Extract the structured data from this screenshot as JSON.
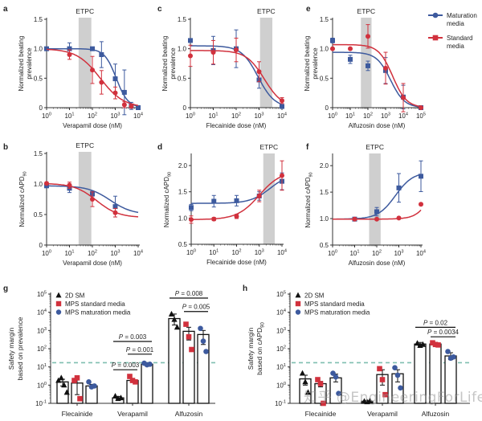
{
  "colors": {
    "maturation": "#3d5a9e",
    "standard": "#d1313d",
    "etpc_band": "#cfcfcf",
    "twod": "#111111",
    "threshold": "#7fbfb0"
  },
  "legend_top": {
    "items": [
      {
        "label_line1": "Maturation",
        "label_line2": "media",
        "series": "maturation"
      },
      {
        "label_line1": "Standard",
        "label_line2": "media",
        "series": "standard"
      }
    ]
  },
  "watermark": "知乎 @EngineeringForLife",
  "chart_data": [
    {
      "panel": "a",
      "type": "line",
      "band_label": "ETPC",
      "band": [
        25,
        90
      ],
      "xlabel": "Verapamil dose (nM)",
      "ylabel": "Normalized beating prevalence",
      "xscale": "log",
      "xlim": [
        1,
        10000
      ],
      "xticks": [
        "10^0",
        "10^1",
        "10^2",
        "10^3",
        "10^4"
      ],
      "ylim": [
        0,
        1.5
      ],
      "yticks": [
        "0",
        "0.5",
        "1.0",
        "1.5"
      ],
      "series": [
        {
          "name": "Maturation media",
          "key": "maturation",
          "marker": "square",
          "x": [
            1,
            10,
            100,
            250,
            1000,
            2500,
            5000,
            10000
          ],
          "y": [
            1.0,
            1.0,
            1.0,
            0.9,
            0.49,
            0.26,
            0.03,
            0.0
          ],
          "err": [
            0,
            0.1,
            0,
            0.22,
            0.25,
            0.38,
            0.06,
            0
          ],
          "fit": {
            "top": 1.0,
            "bottom": 0.0,
            "ic50": 1100,
            "hill": 1.7
          }
        },
        {
          "name": "Standard media",
          "key": "standard",
          "marker": "circle",
          "x": [
            10,
            100,
            250,
            1000,
            2500,
            5000
          ],
          "y": [
            0.9,
            0.64,
            0.43,
            0.25,
            0.05,
            0.02
          ],
          "err": [
            0.08,
            0.23,
            0.2,
            0.1,
            0.05,
            0.02
          ],
          "fit": {
            "top": 1.0,
            "bottom": 0.0,
            "ic50": 220,
            "hill": 0.85
          }
        }
      ]
    },
    {
      "panel": "c",
      "type": "line",
      "band_label": "ETPC",
      "band": [
        1100,
        3800
      ],
      "xlabel": "Flecainide dose (nM)",
      "ylabel": "Normalized beating prevalence",
      "xscale": "log",
      "xlim": [
        1,
        10000
      ],
      "xticks": [
        "10^0",
        "10^1",
        "10^2",
        "10^3",
        "10^4"
      ],
      "ylim": [
        0,
        1.5
      ],
      "yticks": [
        "0",
        "0.5",
        "1.0",
        "1.5"
      ],
      "series": [
        {
          "name": "Maturation media",
          "key": "maturation",
          "marker": "square",
          "x": [
            1,
            10,
            100,
            1000,
            10000
          ],
          "y": [
            1.14,
            0.97,
            1.0,
            0.47,
            0.02
          ],
          "err": [
            0.02,
            0.24,
            0.32,
            0.14,
            0.02
          ],
          "fit": {
            "top": 1.05,
            "bottom": 0.0,
            "ic50": 900,
            "hill": 1.2
          }
        },
        {
          "name": "Standard media",
          "key": "standard",
          "marker": "circle",
          "x": [
            1,
            10,
            100,
            1000,
            10000
          ],
          "y": [
            0.88,
            0.94,
            0.98,
            0.61,
            0.12
          ],
          "err": [
            0.18,
            0.2,
            0.2,
            0.17,
            0.05
          ],
          "fit": {
            "top": 0.97,
            "bottom": 0.0,
            "ic50": 1700,
            "hill": 1.1
          }
        }
      ]
    },
    {
      "panel": "e",
      "type": "line",
      "band_label": "ETPC",
      "band": [
        40,
        160
      ],
      "xlabel": "Alfuzosin dose (nM)",
      "ylabel": "Normalized beating prevalence",
      "xscale": "log",
      "xlim": [
        1,
        100000
      ],
      "xticks": [
        "10^0",
        "10^1",
        "10^2",
        "10^3",
        "10^4",
        "10^5"
      ],
      "ylim": [
        0,
        1.5
      ],
      "yticks": [
        "0",
        "0.5",
        "1.0",
        "1.5"
      ],
      "series": [
        {
          "name": "Maturation media",
          "key": "maturation",
          "marker": "square",
          "x": [
            1,
            10,
            100,
            1000,
            10000,
            100000
          ],
          "y": [
            1.14,
            0.82,
            0.71,
            0.63,
            0.18,
            0.0
          ],
          "err": [
            0.04,
            0.07,
            0.08,
            0.22,
            0.2,
            0
          ],
          "fit": {
            "top": 0.94,
            "bottom": 0.0,
            "ic50": 1900,
            "hill": 1.1
          }
        },
        {
          "name": "Standard media",
          "key": "standard",
          "marker": "circle",
          "x": [
            1,
            10,
            100,
            1000,
            10000,
            100000
          ],
          "y": [
            1.0,
            1.0,
            1.21,
            0.67,
            0.17,
            0.0
          ],
          "err": [
            0,
            0,
            0.2,
            0.27,
            0.24,
            0
          ],
          "fit": {
            "top": 1.07,
            "bottom": 0.0,
            "ic50": 2500,
            "hill": 1.1
          }
        }
      ]
    },
    {
      "panel": "b",
      "type": "line",
      "band_label": "ETPC",
      "band": [
        25,
        90
      ],
      "xlabel": "Verapamil dose (nM)",
      "ylabel": "Normalized cAPD90",
      "xscale": "log",
      "xlim": [
        1,
        10000
      ],
      "xticks": [
        "10^0",
        "10^1",
        "10^2",
        "10^3",
        "10^4"
      ],
      "ylim": [
        0,
        1.5
      ],
      "yticks": [
        "0",
        "0.5",
        "1.0",
        "1.5"
      ],
      "series": [
        {
          "name": "Maturation media",
          "key": "maturation",
          "marker": "square",
          "x": [
            1,
            10,
            100,
            1000
          ],
          "y": [
            0.97,
            0.93,
            0.84,
            0.63
          ],
          "err": [
            0.03,
            0.07,
            0.04,
            0.17
          ],
          "fit": {
            "top": 0.97,
            "bottom": 0.5,
            "ic50": 600,
            "hill": 0.9
          }
        },
        {
          "name": "Standard media",
          "key": "standard",
          "marker": "circle",
          "x": [
            1,
            10,
            100,
            1000
          ],
          "y": [
            1.01,
            0.98,
            0.75,
            0.53
          ],
          "err": [
            0.02,
            0.05,
            0.12,
            0.07
          ],
          "fit": {
            "top": 1.01,
            "bottom": 0.45,
            "ic50": 150,
            "hill": 0.9
          }
        }
      ]
    },
    {
      "panel": "d",
      "type": "line",
      "band_label": "ETPC",
      "band": [
        1500,
        4800
      ],
      "xlabel": "Flecainide dose (nM)",
      "ylabel": "Normalized cAPD90",
      "xscale": "log",
      "xlim": [
        1,
        10000
      ],
      "xticks": [
        "10^0",
        "10^1",
        "10^2",
        "10^3",
        "10^4"
      ],
      "ylim": [
        0.5,
        2.2
      ],
      "yticks": [
        "0.5",
        "1.0",
        "1.5",
        "2.0"
      ],
      "series": [
        {
          "name": "Maturation media",
          "key": "maturation",
          "marker": "square",
          "x": [
            1,
            10,
            100,
            1000,
            10000
          ],
          "y": [
            1.2,
            1.32,
            1.33,
            1.42,
            1.7
          ],
          "err": [
            0.06,
            0.11,
            0.1,
            0.08,
            0.16
          ],
          "fit": {
            "top": 1.28,
            "bottom": 1.85,
            "ic50": 3000,
            "hill": 1.0
          }
        },
        {
          "name": "Standard media",
          "key": "standard",
          "marker": "circle",
          "x": [
            1,
            10,
            100,
            1000,
            10000
          ],
          "y": [
            0.97,
            0.98,
            1.03,
            1.42,
            1.81
          ],
          "err": [
            0.07,
            0.03,
            0.04,
            0.11,
            0.28
          ],
          "fit": {
            "top": 0.97,
            "bottom": 1.9,
            "ic50": 1000,
            "hill": 0.9
          }
        }
      ]
    },
    {
      "panel": "f",
      "type": "line",
      "band_label": "ETPC",
      "band": [
        45,
        150
      ],
      "xlabel": "Alfuzosin dose (nM)",
      "ylabel": "Normalized cAPD90",
      "xscale": "log",
      "xlim": [
        1,
        10000
      ],
      "xticks": [
        "10^0",
        "10^1",
        "10^2",
        "10^3",
        "10^4"
      ],
      "ylim": [
        0.5,
        2.2
      ],
      "yticks": [
        "0.5",
        "1.0",
        "1.5",
        "2.0"
      ],
      "series": [
        {
          "name": "Maturation media",
          "key": "maturation",
          "marker": "square",
          "x": [
            10,
            100,
            1000,
            10000
          ],
          "y": [
            0.99,
            1.13,
            1.58,
            1.8
          ],
          "err": [
            0.03,
            0.08,
            0.27,
            0.29
          ],
          "fit": {
            "top": 0.99,
            "bottom": 1.88,
            "ic50": 700,
            "hill": 1.1
          }
        },
        {
          "name": "Standard media",
          "key": "standard",
          "marker": "circle",
          "x": [
            10,
            100,
            1000,
            10000
          ],
          "y": [
            0.99,
            0.99,
            1.01,
            1.27
          ],
          "err": [
            0.02,
            0.02,
            0.02,
            0.02
          ],
          "fit": {
            "top": 0.99,
            "bottom": 2.2,
            "ic50": 40000,
            "hill": 1.3
          }
        }
      ]
    },
    {
      "panel": "g",
      "type": "bar",
      "ylabel": "Safety margin based on prevalence",
      "yscale": "log",
      "ylim": [
        0.1,
        100000
      ],
      "yticks": [
        "10^-1",
        "10^0",
        "10^1",
        "10^2",
        "10^3",
        "10^4",
        "10^5"
      ],
      "categories": [
        "Flecainide",
        "Verapamil",
        "Alfuzosin"
      ],
      "threshold": 17,
      "legend": [
        {
          "label": "2D SM",
          "key": "twod",
          "marker": "triangle"
        },
        {
          "label": "MPS standard media",
          "key": "standard",
          "marker": "square"
        },
        {
          "label": "MPS maturation media",
          "key": "maturation",
          "marker": "circle"
        }
      ],
      "series": [
        {
          "name": "2D SM",
          "key": "twod",
          "marker": "triangle",
          "values": [
            1.5,
            0.2,
            4500
          ],
          "points": [
            [
              1.8,
              2.5,
              1.0,
              0.4
            ],
            [
              0.25,
              0.18,
              0.2
            ],
            [
              8000,
              4000,
              1500
            ]
          ],
          "err": [
            [
              0.9,
              2.1
            ],
            [
              0.17,
              0.24
            ],
            [
              2000,
              8000
            ]
          ]
        },
        {
          "name": "MPS standard media",
          "key": "standard",
          "marker": "square",
          "values": [
            1.3,
            1.8,
            900
          ],
          "points": [
            [
              1.8,
              2.5,
              0.18
            ],
            [
              3,
              1.8,
              1.5
            ],
            [
              2200,
              450,
              90
            ]
          ],
          "err": [
            [
              0.3,
              2.3
            ],
            [
              1.4,
              2.3
            ],
            [
              300,
              1500
            ]
          ]
        },
        {
          "name": "MPS maturation media",
          "key": "maturation",
          "marker": "circle",
          "values": [
            0.9,
            14,
            600
          ],
          "points": [
            [
              1.5,
              0.8,
              0.9
            ],
            [
              16,
              13,
              14
            ],
            [
              1300,
              260,
              70
            ]
          ],
          "err": [
            [
              0.7,
              1.1
            ],
            [
              12,
              16
            ],
            [
              170,
              1000
            ]
          ]
        }
      ],
      "pvalues": [
        {
          "label": "P = 0.003",
          "category": "Verapamil",
          "from": 0,
          "to": 1,
          "level": 7
        },
        {
          "label": "P = 0.003",
          "category": "Verapamil",
          "from": 0,
          "to": 2,
          "level": 250
        },
        {
          "label": "P = 0.001",
          "category": "Verapamil",
          "from": 1,
          "to": 2,
          "level": 50
        },
        {
          "label": "P = 0.008",
          "category": "Alfuzosin",
          "from": 0,
          "to": 2,
          "level": 60000
        },
        {
          "label": "P = 0.005",
          "category": "Alfuzosin",
          "from": 1,
          "to": 2,
          "level": 11000
        }
      ]
    },
    {
      "panel": "h",
      "type": "bar",
      "ylabel": "Safety margin based on cAPD90",
      "yscale": "log",
      "ylim": [
        0.1,
        100000
      ],
      "yticks": [
        "10^-1",
        "10^0",
        "10^1",
        "10^2",
        "10^3",
        "10^4",
        "10^5"
      ],
      "categories": [
        "Flecainide",
        "Verapamil",
        "Alfuzosin"
      ],
      "threshold": 17,
      "legend": [
        {
          "label": "2D SM",
          "key": "twod",
          "marker": "triangle"
        },
        {
          "label": "MPS standard media",
          "key": "standard",
          "marker": "square"
        },
        {
          "label": "MPS maturation media",
          "key": "maturation",
          "marker": "circle"
        }
      ],
      "series": [
        {
          "name": "2D SM",
          "key": "twod",
          "marker": "triangle",
          "values": [
            2.2,
            0.13,
            180
          ],
          "points": [
            [
              4.5,
              1.5,
              0.4
            ],
            [
              0.13,
              0.12,
              0.14
            ],
            [
              200,
              150,
              170
            ]
          ],
          "err": [
            [
              1.0,
              3.5
            ],
            [
              0.12,
              0.14
            ],
            [
              140,
              220
            ]
          ]
        },
        {
          "name": "MPS standard media",
          "key": "standard",
          "marker": "square",
          "values": [
            1.2,
            3.8,
            180
          ],
          "points": [
            [
              2.0,
              1.2,
              0.1
            ],
            [
              8,
              2,
              0.3
            ],
            [
              210,
              170,
              160
            ]
          ],
          "err": [
            [
              0.8,
              1.6
            ],
            [
              1.0,
              7
            ],
            [
              160,
              200
            ]
          ]
        },
        {
          "name": "MPS maturation media",
          "key": "maturation",
          "marker": "circle",
          "values": [
            2.5,
            4.2,
            40
          ],
          "points": [
            [
              4.5,
              2.8,
              0.35
            ],
            [
              9,
              3.5,
              0.7
            ],
            [
              70,
              30,
              35
            ]
          ],
          "err": [
            [
              1.5,
              4
            ],
            [
              1.5,
              7
            ],
            [
              25,
              60
            ]
          ]
        }
      ],
      "pvalues": [
        {
          "label": "P = 0.02",
          "category": "Alfuzosin",
          "from": 0,
          "to": 2,
          "level": 1500
        },
        {
          "label": "P = 0.0034",
          "category": "Alfuzosin",
          "from": 1,
          "to": 2,
          "level": 450
        }
      ]
    }
  ]
}
